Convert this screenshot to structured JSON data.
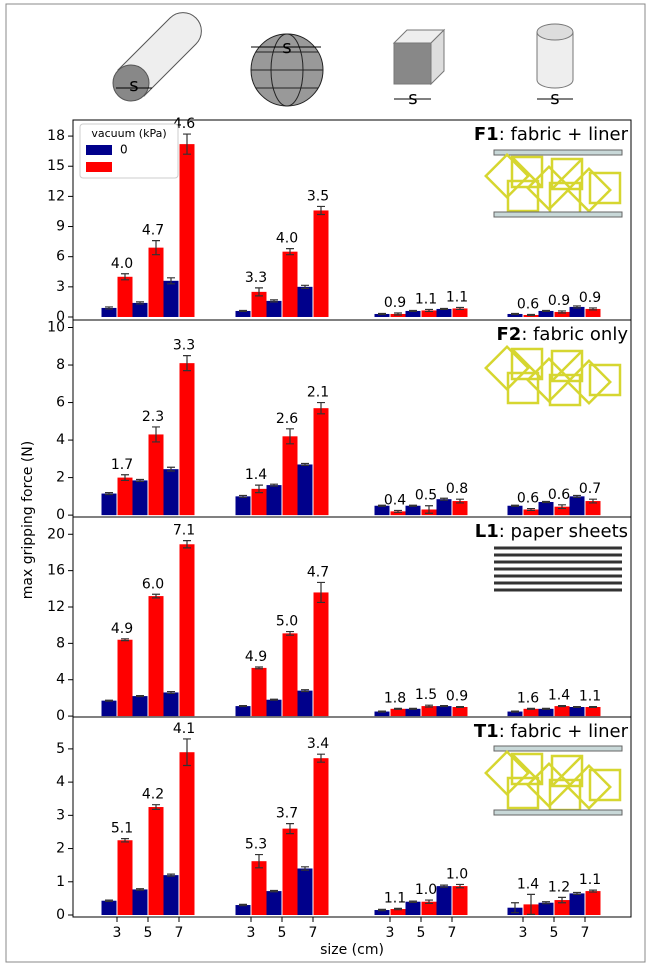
{
  "dimension_label": "s",
  "ylabel": "max gripping force (N)",
  "xlabel": "size (cm)",
  "chart_data": [
    {
      "type": "bar",
      "label": "F1",
      "description": ": fabric + liner",
      "legend_title": "vacuum (kPa)",
      "ylim": [
        -0.3,
        19.6
      ],
      "yticks": [
        0,
        3,
        6,
        9,
        12,
        15,
        18
      ],
      "series": [
        {
          "name": "0",
          "color": "#00008b",
          "values": [
            0.9,
            1.4,
            3.6,
            0.6,
            1.6,
            3.0,
            0.3,
            0.6,
            0.8,
            0.3,
            0.6,
            1.0
          ],
          "errors": [
            0.1,
            0.1,
            0.3,
            0.05,
            0.1,
            0.15,
            0.05,
            0.05,
            0.05,
            0.05,
            0.05,
            0.1
          ]
        },
        {
          "color": "#ff0000",
          "values": [
            4.0,
            6.9,
            17.2,
            2.5,
            6.5,
            10.6,
            0.3,
            0.65,
            0.85,
            0.2,
            0.5,
            0.8
          ],
          "errors": [
            0.3,
            0.7,
            1.0,
            0.4,
            0.3,
            0.4,
            0.1,
            0.1,
            0.1,
            0.05,
            0.1,
            0.1
          ]
        }
      ],
      "annotations": [
        "4.0",
        "4.7",
        "4.6",
        "3.3",
        "4.0",
        "3.5",
        "0.9",
        "1.1",
        "1.1",
        "0.6",
        "0.9",
        "0.9"
      ]
    },
    {
      "type": "bar",
      "label": "F2",
      "description": ": fabric only",
      "ylim": [
        -0.1,
        10.4
      ],
      "yticks": [
        0,
        2,
        4,
        6,
        8,
        10
      ],
      "series": [
        {
          "color": "#00008b",
          "values": [
            1.15,
            1.85,
            2.45,
            1.0,
            1.6,
            2.7,
            0.5,
            0.5,
            0.85,
            0.5,
            0.7,
            1.0
          ],
          "errors": [
            0.05,
            0.05,
            0.1,
            0.05,
            0.05,
            0.05,
            0.03,
            0.03,
            0.05,
            0.03,
            0.03,
            0.05
          ]
        },
        {
          "color": "#ff0000",
          "values": [
            2.0,
            4.3,
            8.1,
            1.4,
            4.2,
            5.7,
            0.2,
            0.3,
            0.75,
            0.3,
            0.45,
            0.75
          ],
          "errors": [
            0.15,
            0.4,
            0.4,
            0.2,
            0.4,
            0.3,
            0.05,
            0.2,
            0.1,
            0.05,
            0.1,
            0.1
          ]
        }
      ],
      "annotations": [
        "1.7",
        "2.3",
        "3.3",
        "1.4",
        "2.6",
        "2.1",
        "0.4",
        "0.5",
        "0.8",
        "0.6",
        "0.6",
        "0.7"
      ]
    },
    {
      "type": "bar",
      "label": "L1",
      "description": ": paper sheets",
      "ylim": [
        -0.1,
        21.9
      ],
      "yticks": [
        0,
        4,
        8,
        12,
        16,
        20
      ],
      "series": [
        {
          "color": "#00008b",
          "values": [
            1.7,
            2.2,
            2.6,
            1.1,
            1.8,
            2.8,
            0.5,
            0.8,
            1.1,
            0.5,
            0.8,
            1.0
          ],
          "errors": [
            0.05,
            0.05,
            0.1,
            0.05,
            0.05,
            0.1,
            0.05,
            0.05,
            0.05,
            0.05,
            0.05,
            0.05
          ]
        },
        {
          "color": "#ff0000",
          "values": [
            8.4,
            13.2,
            18.9,
            5.3,
            9.1,
            13.6,
            0.8,
            1.1,
            1.0,
            0.8,
            1.1,
            1.0
          ],
          "errors": [
            0.1,
            0.2,
            0.4,
            0.1,
            0.2,
            1.1,
            0.05,
            0.1,
            0.05,
            0.05,
            0.05,
            0.05
          ]
        }
      ],
      "annotations": [
        "4.9",
        "6.0",
        "7.1",
        "4.9",
        "5.0",
        "4.7",
        "1.8",
        "1.5",
        "0.9",
        "1.6",
        "1.4",
        "1.1"
      ]
    },
    {
      "type": "bar",
      "label": "T1",
      "description": ": fabric + liner",
      "ylim": [
        -0.06,
        5.96
      ],
      "yticks": [
        0,
        1,
        2,
        3,
        4,
        5
      ],
      "categories": [
        "3",
        "5",
        "7",
        "3",
        "5",
        "7",
        "3",
        "5",
        "7",
        "3",
        "5",
        "7"
      ],
      "series": [
        {
          "color": "#00008b",
          "values": [
            0.43,
            0.77,
            1.2,
            0.3,
            0.72,
            1.4,
            0.15,
            0.4,
            0.87,
            0.22,
            0.37,
            0.65
          ],
          "errors": [
            0.02,
            0.02,
            0.03,
            0.02,
            0.02,
            0.05,
            0.02,
            0.02,
            0.03,
            0.15,
            0.03,
            0.03
          ]
        },
        {
          "color": "#ff0000",
          "values": [
            2.25,
            3.25,
            4.9,
            1.62,
            2.6,
            4.72,
            0.18,
            0.4,
            0.87,
            0.32,
            0.45,
            0.72
          ],
          "errors": [
            0.05,
            0.07,
            0.4,
            0.2,
            0.15,
            0.12,
            0.02,
            0.05,
            0.05,
            0.3,
            0.08,
            0.03
          ]
        }
      ],
      "annotations": [
        "5.1",
        "4.2",
        "4.1",
        "5.3",
        "3.7",
        "3.4",
        "1.1",
        "1.0",
        "1.0",
        "1.4",
        "1.2",
        "1.1"
      ]
    }
  ]
}
